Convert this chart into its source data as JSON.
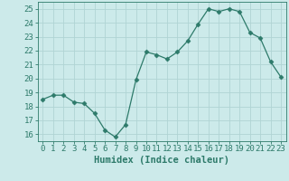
{
  "x": [
    0,
    1,
    2,
    3,
    4,
    5,
    6,
    7,
    8,
    9,
    10,
    11,
    12,
    13,
    14,
    15,
    16,
    17,
    18,
    19,
    20,
    21,
    22,
    23
  ],
  "y": [
    18.5,
    18.8,
    18.8,
    18.3,
    18.2,
    17.5,
    16.3,
    15.8,
    16.7,
    19.9,
    21.9,
    21.7,
    21.4,
    21.9,
    22.7,
    23.9,
    25.0,
    24.8,
    25.0,
    24.8,
    23.3,
    22.9,
    21.2,
    20.1
  ],
  "line_color": "#2d7a6a",
  "marker": "D",
  "marker_size": 2.5,
  "bg_color": "#cceaea",
  "grid_color": "#b0d4d4",
  "xlabel": "Humidex (Indice chaleur)",
  "ylim": [
    15.5,
    25.5
  ],
  "yticks": [
    16,
    17,
    18,
    19,
    20,
    21,
    22,
    23,
    24,
    25
  ],
  "xticks": [
    0,
    1,
    2,
    3,
    4,
    5,
    6,
    7,
    8,
    9,
    10,
    11,
    12,
    13,
    14,
    15,
    16,
    17,
    18,
    19,
    20,
    21,
    22,
    23
  ],
  "title_color": "#2d7a6a",
  "label_fontsize": 7.5,
  "tick_fontsize": 6.5
}
